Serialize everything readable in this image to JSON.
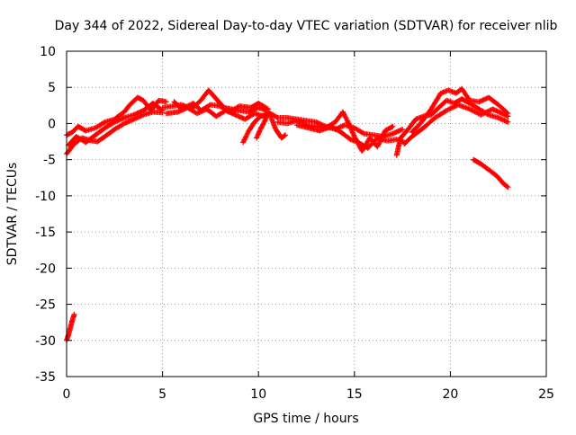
{
  "chart_data": {
    "type": "scatter",
    "title": "Day 344 of 2022, Sidereal Day-to-day VTEC variation (SDTVAR) for receiver nlib",
    "xlabel": "GPS time / hours",
    "ylabel": "SDTVAR / TECUs",
    "xlim": [
      0,
      25
    ],
    "ylim": [
      -35,
      10
    ],
    "xticks": [
      0,
      5,
      10,
      15,
      20,
      25
    ],
    "yticks": [
      -35,
      -30,
      -25,
      -20,
      -15,
      -10,
      -5,
      0,
      5,
      10
    ],
    "grid": true,
    "marker": "+",
    "series": [
      {
        "name": "SDTVAR",
        "color": "#ff0000",
        "segments": [
          [
            [
              0.0,
              -4.2
            ],
            [
              0.4,
              -2.8
            ],
            [
              0.8,
              -2.0
            ],
            [
              1.2,
              -2.3
            ],
            [
              1.6,
              -2.5
            ],
            [
              2.0,
              -1.8
            ],
            [
              2.5,
              -0.8
            ],
            [
              3.0,
              0.0
            ],
            [
              3.5,
              0.6
            ],
            [
              4.0,
              1.2
            ],
            [
              4.5,
              1.6
            ],
            [
              5.0,
              1.5
            ]
          ],
          [
            [
              0.0,
              -1.6
            ],
            [
              0.3,
              -1.2
            ],
            [
              0.6,
              -0.4
            ],
            [
              1.0,
              -1.0
            ],
            [
              1.5,
              -0.6
            ],
            [
              2.0,
              0.2
            ],
            [
              2.5,
              0.6
            ],
            [
              3.0,
              1.6
            ],
            [
              3.3,
              2.6
            ],
            [
              3.7,
              3.6
            ],
            [
              4.0,
              3.2
            ],
            [
              4.4,
              1.8
            ],
            [
              4.8,
              3.2
            ],
            [
              5.2,
              3.0
            ]
          ],
          [
            [
              0.1,
              -3.0
            ],
            [
              0.5,
              -1.8
            ],
            [
              1.0,
              -2.6
            ],
            [
              1.5,
              -1.6
            ],
            [
              2.0,
              -0.6
            ],
            [
              2.5,
              0.2
            ],
            [
              3.0,
              0.8
            ],
            [
              3.5,
              1.2
            ],
            [
              4.0,
              1.8
            ],
            [
              4.5,
              2.8
            ],
            [
              5.0,
              1.8
            ]
          ],
          [
            [
              5.0,
              2.2
            ],
            [
              5.5,
              2.4
            ],
            [
              6.0,
              2.6
            ],
            [
              6.5,
              2.0
            ],
            [
              7.0,
              3.2
            ],
            [
              7.4,
              4.6
            ],
            [
              7.8,
              3.4
            ],
            [
              8.2,
              2.2
            ],
            [
              8.6,
              2.0
            ],
            [
              9.0,
              1.8
            ],
            [
              9.5,
              1.6
            ],
            [
              10.0,
              2.2
            ],
            [
              10.4,
              1.8
            ]
          ],
          [
            [
              5.2,
              1.4
            ],
            [
              5.8,
              1.6
            ],
            [
              6.3,
              2.2
            ],
            [
              6.8,
              1.4
            ],
            [
              7.3,
              2.0
            ],
            [
              7.8,
              1.0
            ],
            [
              8.3,
              1.8
            ],
            [
              8.8,
              1.2
            ],
            [
              9.3,
              0.6
            ],
            [
              9.8,
              1.4
            ],
            [
              10.3,
              1.0
            ]
          ],
          [
            [
              5.6,
              3.0
            ],
            [
              6.0,
              2.0
            ],
            [
              6.6,
              2.8
            ],
            [
              7.0,
              1.8
            ],
            [
              7.5,
              2.6
            ],
            [
              8.0,
              2.4
            ],
            [
              8.5,
              1.6
            ],
            [
              9.0,
              2.4
            ],
            [
              9.6,
              2.2
            ],
            [
              10.0,
              2.8
            ],
            [
              10.5,
              2.0
            ]
          ],
          [
            [
              9.2,
              -2.6
            ],
            [
              9.5,
              -1.0
            ],
            [
              9.8,
              0.2
            ],
            [
              10.1,
              1.0
            ],
            [
              10.4,
              1.2
            ]
          ],
          [
            [
              9.9,
              -2.0
            ],
            [
              10.1,
              -0.8
            ],
            [
              10.3,
              0.2
            ],
            [
              10.5,
              1.4
            ]
          ],
          [
            [
              10.6,
              1.2
            ],
            [
              10.9,
              -0.8
            ],
            [
              11.2,
              -2.0
            ],
            [
              11.4,
              -1.6
            ]
          ],
          [
            [
              10.5,
              1.6
            ],
            [
              11.0,
              0.8
            ],
            [
              11.5,
              0.8
            ],
            [
              12.0,
              0.6
            ],
            [
              12.5,
              0.4
            ],
            [
              13.0,
              0.2
            ],
            [
              13.5,
              -0.4
            ],
            [
              14.0,
              -0.8
            ],
            [
              14.5,
              -0.2
            ],
            [
              15.0,
              -0.6
            ],
            [
              15.5,
              -1.4
            ],
            [
              16.0,
              -1.6
            ],
            [
              16.5,
              -1.8
            ],
            [
              17.0,
              -1.4
            ],
            [
              17.5,
              -0.8
            ]
          ],
          [
            [
              11.0,
              0.2
            ],
            [
              11.5,
              0.0
            ],
            [
              12.0,
              0.4
            ],
            [
              12.5,
              -0.2
            ],
            [
              13.0,
              -0.4
            ],
            [
              13.5,
              -0.6
            ],
            [
              14.0,
              0.2
            ],
            [
              14.4,
              1.6
            ],
            [
              14.7,
              0.0
            ],
            [
              15.0,
              -1.8
            ],
            [
              15.4,
              -3.8
            ],
            [
              15.8,
              -2.0
            ],
            [
              16.2,
              -3.2
            ],
            [
              16.6,
              -1.0
            ],
            [
              17.0,
              -0.4
            ]
          ],
          [
            [
              12.0,
              -0.2
            ],
            [
              12.6,
              -0.6
            ],
            [
              13.2,
              -1.0
            ],
            [
              13.8,
              -0.4
            ],
            [
              14.3,
              -1.2
            ],
            [
              14.8,
              -2.2
            ],
            [
              15.2,
              -2.6
            ],
            [
              15.7,
              -3.4
            ],
            [
              16.2,
              -2.0
            ],
            [
              16.7,
              -2.4
            ],
            [
              17.2,
              -2.2
            ],
            [
              17.6,
              -2.6
            ]
          ],
          [
            [
              17.2,
              -4.4
            ],
            [
              17.4,
              -2.0
            ],
            [
              17.8,
              -0.8
            ],
            [
              18.2,
              0.6
            ],
            [
              18.6,
              1.0
            ],
            [
              19.0,
              1.2
            ],
            [
              19.4,
              2.2
            ],
            [
              19.8,
              3.2
            ],
            [
              20.2,
              2.8
            ],
            [
              20.6,
              3.4
            ],
            [
              21.0,
              2.8
            ],
            [
              21.5,
              2.0
            ],
            [
              22.0,
              1.2
            ],
            [
              22.5,
              0.8
            ],
            [
              23.0,
              0.2
            ]
          ],
          [
            [
              18.0,
              -1.2
            ],
            [
              18.5,
              0.2
            ],
            [
              19.0,
              2.0
            ],
            [
              19.5,
              4.2
            ],
            [
              19.9,
              4.6
            ],
            [
              20.3,
              4.2
            ],
            [
              20.6,
              4.8
            ],
            [
              21.0,
              3.2
            ],
            [
              21.5,
              3.0
            ],
            [
              22.0,
              3.6
            ],
            [
              22.5,
              2.6
            ],
            [
              23.0,
              1.4
            ]
          ],
          [
            [
              17.6,
              -2.8
            ],
            [
              18.0,
              -1.8
            ],
            [
              18.6,
              -0.6
            ],
            [
              19.2,
              0.8
            ],
            [
              19.8,
              1.8
            ],
            [
              20.4,
              2.6
            ],
            [
              21.0,
              2.0
            ],
            [
              21.6,
              1.2
            ],
            [
              22.2,
              2.0
            ],
            [
              22.7,
              1.4
            ],
            [
              23.0,
              1.0
            ]
          ],
          [
            [
              21.2,
              -5.0
            ],
            [
              21.6,
              -5.6
            ],
            [
              22.0,
              -6.4
            ],
            [
              22.4,
              -7.2
            ],
            [
              22.8,
              -8.4
            ],
            [
              23.0,
              -8.8
            ]
          ],
          [
            [
              0.0,
              -30.0
            ],
            [
              0.1,
              -29.2
            ],
            [
              0.2,
              -28.2
            ],
            [
              0.3,
              -27.2
            ],
            [
              0.4,
              -26.4
            ]
          ]
        ]
      }
    ]
  }
}
